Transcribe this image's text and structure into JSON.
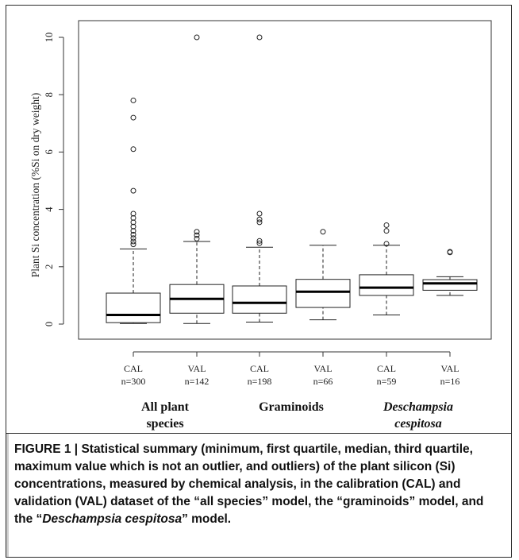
{
  "chart_data": {
    "type": "boxplot",
    "ylabel": "Plant Si concentration (%Si on dry weight)",
    "ylim": [
      0,
      10
    ],
    "yticks": [
      "0",
      "2",
      "4",
      "6",
      "8",
      "10"
    ],
    "ytick_values": [
      0,
      2,
      4,
      6,
      8,
      10
    ],
    "grid": false,
    "groups": [
      {
        "label_line1": "All plant",
        "label_line2": "species",
        "italic": false
      },
      {
        "label_line1": "Graminoids",
        "label_line2": "",
        "italic": false
      },
      {
        "label_line1": "Deschampsia",
        "label_line2": "cespitosa",
        "italic": true
      }
    ],
    "boxes": [
      {
        "set": "CAL",
        "n": "n=300",
        "group": 0,
        "min": 0.02,
        "q1": 0.05,
        "median": 0.32,
        "q3": 1.08,
        "max": 2.62,
        "outliers": [
          2.78,
          2.88,
          3.0,
          3.12,
          3.25,
          3.4,
          3.55,
          3.7,
          3.85,
          4.65,
          6.1,
          7.2,
          7.8
        ]
      },
      {
        "set": "VAL",
        "n": "n=142",
        "group": 0,
        "min": 0.02,
        "q1": 0.38,
        "median": 0.88,
        "q3": 1.38,
        "max": 2.88,
        "outliers": [
          2.98,
          3.1,
          3.22,
          10.0
        ]
      },
      {
        "set": "CAL",
        "n": "n=198",
        "group": 1,
        "min": 0.07,
        "q1": 0.38,
        "median": 0.74,
        "q3": 1.33,
        "max": 2.68,
        "outliers": [
          2.82,
          2.9,
          3.55,
          3.65,
          3.85,
          10.0
        ]
      },
      {
        "set": "VAL",
        "n": "n=66",
        "group": 1,
        "min": 0.15,
        "q1": 0.58,
        "median": 1.13,
        "q3": 1.56,
        "max": 2.75,
        "outliers": [
          3.22
        ]
      },
      {
        "set": "CAL",
        "n": "n=59",
        "group": 2,
        "min": 0.32,
        "q1": 1.0,
        "median": 1.27,
        "q3": 1.72,
        "max": 2.75,
        "outliers": [
          2.8,
          3.25,
          3.45
        ]
      },
      {
        "set": "VAL",
        "n": "n=16",
        "group": 2,
        "min": 1.0,
        "q1": 1.18,
        "median": 1.42,
        "q3": 1.55,
        "max": 1.65,
        "outliers": [
          2.5,
          2.52
        ]
      }
    ]
  },
  "caption": {
    "label": "FIGURE 1 | ",
    "text_part1": "Statistical summary (minimum, first quartile, median, third quartile, maximum value which is not an outlier, and outliers) of the plant silicon (Si) concentrations, measured by chemical analysis, in the calibration (CAL) and validation (VAL) dataset of the “all species” model, the “graminoids” model, and the “",
    "text_italic": "Deschampsia cespitosa",
    "text_part2": "” model."
  }
}
